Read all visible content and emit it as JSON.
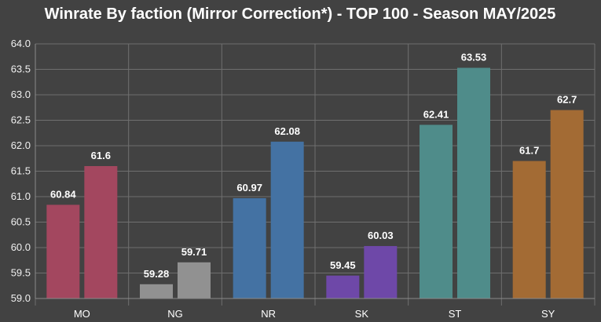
{
  "chart_data": {
    "type": "bar",
    "title": "Winrate By faction (Mirror Correction*) - TOP 100 - Season MAY/2025",
    "xlabel": "",
    "ylabel": "",
    "ylim": [
      59.0,
      64.0
    ],
    "yticks": [
      "59.0",
      "59.5",
      "60.0",
      "60.5",
      "61.0",
      "61.5",
      "62.0",
      "62.5",
      "63.0",
      "63.5",
      "64.0"
    ],
    "grid": true,
    "categories": [
      "MO",
      "NG",
      "NR",
      "SK",
      "ST",
      "SY"
    ],
    "series": [
      {
        "values": [
          60.84,
          59.28,
          60.97,
          59.45,
          62.41,
          61.7
        ]
      },
      {
        "values": [
          61.6,
          59.71,
          62.08,
          60.03,
          63.53,
          62.7
        ]
      }
    ],
    "colors": [
      "#a3475f",
      "#919191",
      "#4472a3",
      "#6e48a8",
      "#4f8c8a",
      "#a36b34"
    ]
  }
}
